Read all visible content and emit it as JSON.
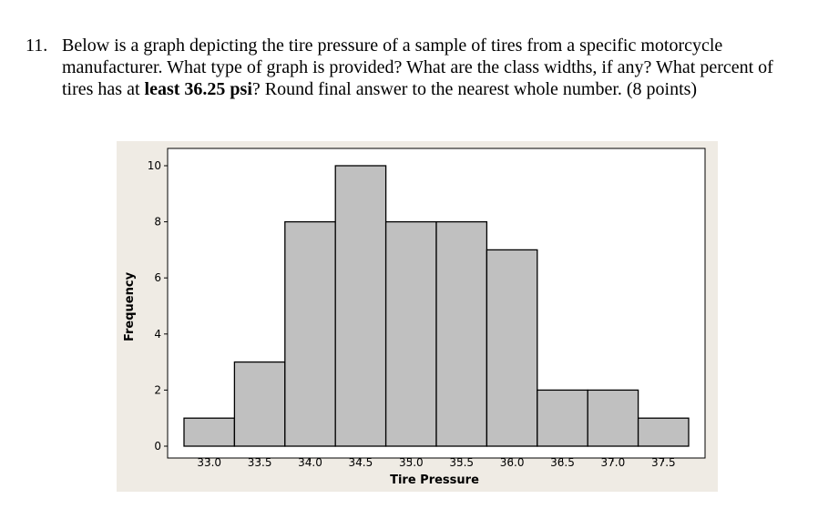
{
  "question": {
    "number": "11.",
    "part1": "Below is a graph depicting the tire pressure of a sample of tires from a specific motorcycle manufacturer. What type of graph is provided? What are the class widths, if any? What percent of tires has at ",
    "bold": "least 36.25 psi",
    "part2": "? Round final answer to the nearest whole number. (8 points)"
  },
  "chart_data": {
    "type": "bar",
    "subtype": "histogram",
    "categories": [
      "33.0",
      "33.5",
      "34.0",
      "34.5",
      "35.0",
      "35.5",
      "36.0",
      "36.5",
      "37.0",
      "37.5"
    ],
    "x": [
      33.0,
      33.5,
      34.0,
      34.5,
      35.0,
      35.5,
      36.0,
      36.5,
      37.0,
      37.5
    ],
    "values": [
      1,
      3,
      8,
      10,
      8,
      8,
      7,
      2,
      2,
      1
    ],
    "yticks": [
      "0",
      "2",
      "4",
      "6",
      "8",
      "10"
    ],
    "ylim": [
      0,
      10.6
    ],
    "xlabel": "Tire Pressure",
    "ylabel": "Frequency",
    "title": "",
    "grid": false,
    "colors": {
      "bar_fill": "#c0c0c0",
      "bar_stroke": "#000000",
      "background": "#efebe4",
      "plot_bg": "#ffffff"
    }
  }
}
